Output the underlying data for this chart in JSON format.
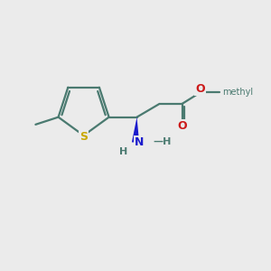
{
  "background_color": "#ebebeb",
  "bond_color": "#4a7a70",
  "sulfur_color": "#c8a800",
  "nitrogen_color": "#1a1acc",
  "oxygen_color": "#cc1a1a",
  "wedge_color": "#1a1acc",
  "line_width": 1.6,
  "fig_width": 3.0,
  "fig_height": 3.0,
  "dpi": 100,
  "font_size": 8.5,
  "methyl_font_size": 8.0,
  "xlim": [
    0,
    10
  ],
  "ylim": [
    0,
    10
  ]
}
